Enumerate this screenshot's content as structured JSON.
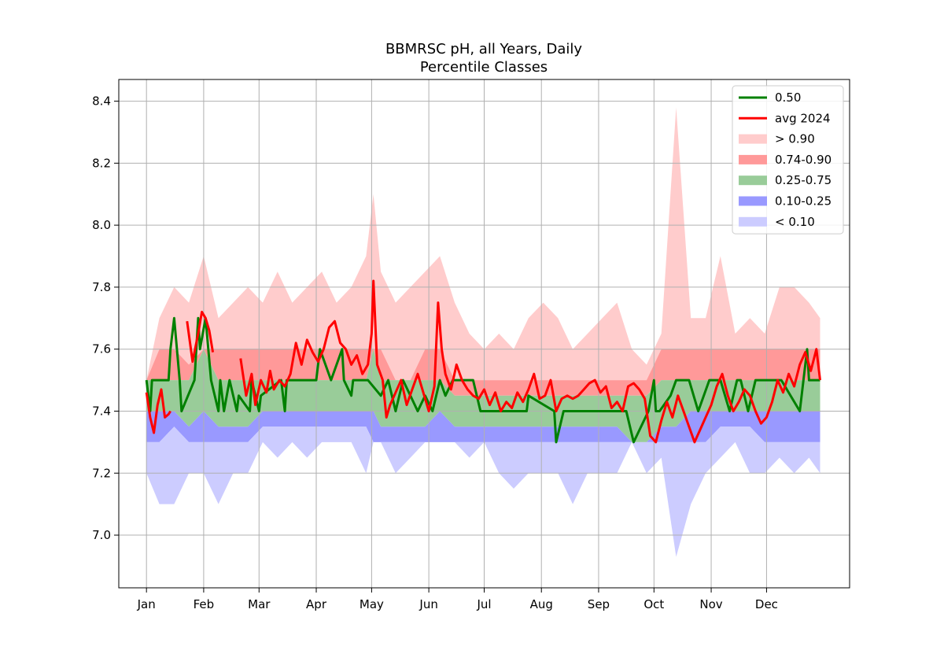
{
  "chart_data": {
    "type": "area",
    "title": [
      "BBMRSC pH, all Years, Daily",
      "Percentile Classes"
    ],
    "xlabel": "",
    "ylabel": "",
    "x_unit": "day of year",
    "xlim": [
      -14,
      382
    ],
    "ylim": [
      6.83,
      8.47
    ],
    "x_ticks": [
      {
        "label": "Jan",
        "day": 1
      },
      {
        "label": "Feb",
        "day": 32
      },
      {
        "label": "Mar",
        "day": 62
      },
      {
        "label": "Apr",
        "day": 93
      },
      {
        "label": "May",
        "day": 123
      },
      {
        "label": "Jun",
        "day": 154
      },
      {
        "label": "Jul",
        "day": 184
      },
      {
        "label": "Aug",
        "day": 215
      },
      {
        "label": "Sep",
        "day": 246
      },
      {
        "label": "Oct",
        "day": 276
      },
      {
        "label": "Nov",
        "day": 307
      },
      {
        "label": "Dec",
        "day": 337
      }
    ],
    "y_ticks": [
      7.0,
      7.2,
      7.4,
      7.6,
      7.8,
      8.0,
      8.2,
      8.4
    ],
    "y_tick_labels": [
      "7.0",
      "7.2",
      "7.4",
      "7.6",
      "7.8",
      "8.0",
      "8.2",
      "8.4"
    ],
    "grid": true,
    "legend_position": "top-right",
    "legend": [
      {
        "label": "0.50",
        "kind": "line",
        "color": "#008000"
      },
      {
        "label": "avg 2024",
        "kind": "line",
        "color": "#ff0000"
      },
      {
        "label": "> 0.90",
        "kind": "patch",
        "color": "#ffcccc"
      },
      {
        "label": "0.74-0.90",
        "kind": "patch",
        "color": "#ff9999"
      },
      {
        "label": "0.25-0.75",
        "kind": "patch",
        "color": "#99cc99"
      },
      {
        "label": "0.10-0.25",
        "kind": "patch",
        "color": "#9999ff"
      },
      {
        "label": "< 0.10",
        "kind": "patch",
        "color": "#ccccff"
      }
    ],
    "series_approx": {
      "x_days": [
        1,
        8,
        16,
        24,
        32,
        40,
        48,
        56,
        64,
        72,
        80,
        88,
        96,
        104,
        112,
        120,
        124,
        128,
        136,
        144,
        152,
        160,
        168,
        176,
        184,
        192,
        200,
        208,
        216,
        224,
        232,
        240,
        248,
        256,
        264,
        272,
        280,
        288,
        296,
        304,
        312,
        320,
        328,
        336,
        344,
        352,
        360,
        366
      ],
      "max": [
        7.5,
        7.7,
        7.8,
        7.75,
        7.9,
        7.7,
        7.75,
        7.8,
        7.75,
        7.85,
        7.75,
        7.8,
        7.85,
        7.75,
        7.8,
        7.9,
        8.1,
        7.85,
        7.75,
        7.8,
        7.85,
        7.9,
        7.75,
        7.65,
        7.6,
        7.65,
        7.6,
        7.7,
        7.75,
        7.7,
        7.6,
        7.65,
        7.7,
        7.75,
        7.6,
        7.55,
        7.65,
        8.38,
        7.7,
        7.7,
        7.9,
        7.65,
        7.7,
        7.65,
        7.8,
        7.8,
        7.75,
        7.7
      ],
      "p90": [
        7.5,
        7.6,
        7.6,
        7.55,
        7.6,
        7.6,
        7.6,
        7.6,
        7.6,
        7.6,
        7.6,
        7.6,
        7.6,
        7.6,
        7.6,
        7.6,
        7.6,
        7.6,
        7.5,
        7.5,
        7.6,
        7.6,
        7.5,
        7.5,
        7.5,
        7.5,
        7.5,
        7.5,
        7.5,
        7.5,
        7.5,
        7.5,
        7.5,
        7.5,
        7.5,
        7.5,
        7.6,
        7.6,
        7.6,
        7.6,
        7.6,
        7.6,
        7.6,
        7.6,
        7.6,
        7.6,
        7.6,
        7.6
      ],
      "p74": [
        7.5,
        7.5,
        7.5,
        7.5,
        7.6,
        7.5,
        7.5,
        7.5,
        7.5,
        7.5,
        7.5,
        7.5,
        7.5,
        7.5,
        7.5,
        7.5,
        7.6,
        7.5,
        7.5,
        7.5,
        7.5,
        7.5,
        7.45,
        7.45,
        7.45,
        7.45,
        7.45,
        7.45,
        7.45,
        7.45,
        7.45,
        7.45,
        7.45,
        7.45,
        7.45,
        7.45,
        7.5,
        7.5,
        7.5,
        7.5,
        7.5,
        7.5,
        7.5,
        7.5,
        7.5,
        7.5,
        7.5,
        7.5
      ],
      "p50": [
        7.5,
        7.45,
        7.5,
        7.45,
        7.6,
        7.45,
        7.45,
        7.4,
        7.45,
        7.5,
        7.45,
        7.5,
        7.5,
        7.5,
        7.55,
        7.5,
        7.5,
        7.45,
        7.45,
        7.45,
        7.45,
        7.45,
        7.45,
        7.4,
        7.4,
        7.4,
        7.4,
        7.4,
        7.4,
        7.35,
        7.4,
        7.4,
        7.4,
        7.4,
        7.4,
        7.35,
        7.45,
        7.45,
        7.5,
        7.5,
        7.45,
        7.5,
        7.45,
        7.5,
        7.5,
        7.45,
        7.5,
        7.5
      ],
      "p25": [
        7.4,
        7.4,
        7.4,
        7.35,
        7.4,
        7.35,
        7.35,
        7.35,
        7.4,
        7.4,
        7.4,
        7.4,
        7.4,
        7.4,
        7.4,
        7.4,
        7.4,
        7.35,
        7.35,
        7.35,
        7.35,
        7.4,
        7.35,
        7.35,
        7.35,
        7.35,
        7.35,
        7.35,
        7.35,
        7.35,
        7.35,
        7.35,
        7.35,
        7.35,
        7.3,
        7.3,
        7.35,
        7.35,
        7.4,
        7.4,
        7.4,
        7.4,
        7.4,
        7.4,
        7.4,
        7.4,
        7.4,
        7.4
      ],
      "p10": [
        7.3,
        7.3,
        7.35,
        7.3,
        7.3,
        7.3,
        7.3,
        7.3,
        7.35,
        7.35,
        7.35,
        7.35,
        7.35,
        7.35,
        7.35,
        7.35,
        7.3,
        7.3,
        7.3,
        7.3,
        7.3,
        7.3,
        7.3,
        7.3,
        7.3,
        7.3,
        7.3,
        7.3,
        7.3,
        7.3,
        7.3,
        7.3,
        7.3,
        7.3,
        7.3,
        7.3,
        7.3,
        7.3,
        7.3,
        7.3,
        7.35,
        7.35,
        7.35,
        7.3,
        7.3,
        7.3,
        7.3,
        7.3
      ],
      "min": [
        7.2,
        7.1,
        7.1,
        7.2,
        7.2,
        7.1,
        7.2,
        7.2,
        7.3,
        7.25,
        7.3,
        7.25,
        7.3,
        7.3,
        7.3,
        7.2,
        7.3,
        7.3,
        7.2,
        7.25,
        7.3,
        7.3,
        7.3,
        7.25,
        7.3,
        7.2,
        7.15,
        7.2,
        7.2,
        7.2,
        7.1,
        7.2,
        7.2,
        7.2,
        7.3,
        7.2,
        7.25,
        6.93,
        7.1,
        7.2,
        7.25,
        7.3,
        7.2,
        7.2,
        7.25,
        7.2,
        7.25,
        7.2
      ]
    },
    "series": [
      {
        "name": "0.50",
        "color": "#008000",
        "x": [
          1,
          3,
          4,
          13,
          14,
          16,
          19,
          20,
          27,
          29,
          30,
          33,
          36,
          40,
          41,
          43,
          46,
          50,
          51,
          57,
          58,
          62,
          63,
          74,
          76,
          77,
          93,
          95,
          101,
          107,
          108,
          112,
          113,
          121,
          128,
          132,
          136,
          140,
          144,
          148,
          152,
          156,
          160,
          163,
          167,
          178,
          180,
          182,
          189,
          207,
          208,
          222,
          223,
          227,
          228,
          232,
          248,
          261,
          265,
          273,
          276,
          277,
          279,
          285,
          288,
          295,
          300,
          306,
          312,
          317,
          321,
          323,
          327,
          331,
          337,
          345,
          355,
          359,
          360,
          366
        ],
        "y": [
          7.5,
          7.4,
          7.5,
          7.5,
          7.6,
          7.7,
          7.5,
          7.4,
          7.5,
          7.7,
          7.6,
          7.7,
          7.5,
          7.4,
          7.5,
          7.4,
          7.5,
          7.4,
          7.45,
          7.4,
          7.5,
          7.4,
          7.45,
          7.5,
          7.4,
          7.5,
          7.5,
          7.6,
          7.5,
          7.6,
          7.5,
          7.45,
          7.5,
          7.5,
          7.45,
          7.5,
          7.4,
          7.5,
          7.45,
          7.4,
          7.45,
          7.4,
          7.5,
          7.45,
          7.5,
          7.5,
          7.45,
          7.4,
          7.4,
          7.4,
          7.45,
          7.4,
          7.3,
          7.4,
          7.4,
          7.4,
          7.4,
          7.4,
          7.3,
          7.4,
          7.5,
          7.4,
          7.4,
          7.45,
          7.5,
          7.5,
          7.4,
          7.5,
          7.5,
          7.4,
          7.5,
          7.5,
          7.4,
          7.5,
          7.5,
          7.5,
          7.4,
          7.6,
          7.5,
          7.5
        ]
      },
      {
        "name": "avg 2024",
        "color": "#ff0000",
        "segments": [
          {
            "x": [
              1,
              3,
              5,
              7,
              9,
              11,
              13,
              14
            ],
            "y": [
              7.46,
              7.38,
              7.33,
              7.42,
              7.47,
              7.38,
              7.39,
              7.4
            ]
          },
          {
            "x": [
              23,
              26,
              29,
              31,
              33,
              35,
              37
            ],
            "y": [
              7.69,
              7.56,
              7.65,
              7.72,
              7.7,
              7.66,
              7.59
            ]
          },
          {
            "x": [
              52,
              55,
              58,
              60,
              63,
              66,
              68,
              70,
              73,
              76,
              79,
              82,
              85,
              88,
              91,
              94,
              97,
              100,
              103,
              106,
              109,
              112,
              115,
              118,
              121,
              123,
              124,
              126,
              129,
              131,
              133,
              136,
              139,
              142,
              145,
              148,
              151,
              154,
              157,
              159,
              161,
              163,
              166,
              169,
              172,
              175,
              178,
              181,
              184,
              187,
              190,
              193,
              196,
              199,
              202,
              205,
              208,
              211,
              214,
              217,
              220,
              223,
              226,
              229,
              232,
              235,
              238,
              241,
              244,
              247,
              250,
              253,
              256,
              259,
              262,
              265,
              268,
              271,
              274,
              277,
              280,
              283,
              286,
              289,
              292,
              295,
              298,
              301,
              304,
              307,
              310,
              313,
              316,
              319,
              322,
              325,
              328,
              331,
              334,
              337,
              340,
              343,
              346,
              349,
              352,
              355,
              358,
              361,
              364,
              366
            ],
            "y": [
              7.57,
              7.45,
              7.52,
              7.42,
              7.5,
              7.46,
              7.53,
              7.47,
              7.5,
              7.48,
              7.52,
              7.62,
              7.55,
              7.63,
              7.59,
              7.56,
              7.6,
              7.67,
              7.69,
              7.62,
              7.6,
              7.55,
              7.58,
              7.52,
              7.55,
              7.65,
              7.82,
              7.55,
              7.5,
              7.38,
              7.42,
              7.46,
              7.5,
              7.42,
              7.47,
              7.52,
              7.46,
              7.4,
              7.48,
              7.75,
              7.6,
              7.52,
              7.47,
              7.55,
              7.5,
              7.47,
              7.45,
              7.44,
              7.47,
              7.42,
              7.46,
              7.4,
              7.43,
              7.41,
              7.46,
              7.43,
              7.47,
              7.52,
              7.44,
              7.45,
              7.5,
              7.4,
              7.44,
              7.45,
              7.44,
              7.45,
              7.47,
              7.49,
              7.5,
              7.46,
              7.48,
              7.41,
              7.43,
              7.4,
              7.48,
              7.49,
              7.47,
              7.44,
              7.32,
              7.3,
              7.37,
              7.43,
              7.38,
              7.45,
              7.4,
              7.35,
              7.3,
              7.34,
              7.38,
              7.42,
              7.48,
              7.52,
              7.45,
              7.4,
              7.43,
              7.47,
              7.45,
              7.4,
              7.36,
              7.38,
              7.43,
              7.5,
              7.46,
              7.52,
              7.48,
              7.55,
              7.59,
              7.53,
              7.6,
              7.5
            ]
          }
        ]
      }
    ]
  }
}
